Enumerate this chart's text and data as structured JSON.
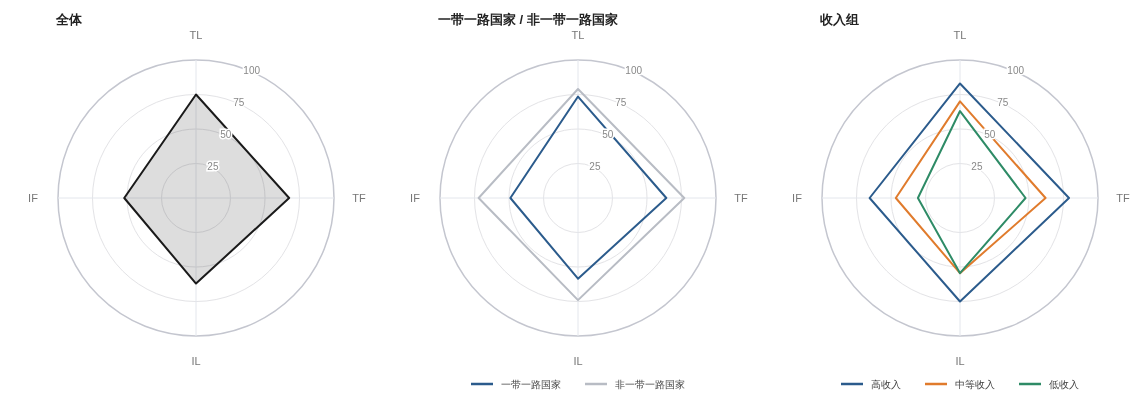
{
  "chart_data": [
    {
      "type": "radar",
      "title": "全体",
      "categories": [
        "TL",
        "TF",
        "IL",
        "IF"
      ],
      "ylim": [
        0,
        100
      ],
      "yticks": [
        25,
        50,
        75,
        100
      ],
      "grid": true,
      "legend": false,
      "series": [
        {
          "type": "area",
          "color": "#1a1a1a",
          "values": [
            75,
            67.5,
            62,
            52
          ]
        }
      ]
    },
    {
      "type": "radar",
      "title": "一带一路国家 / 非一带一路国家",
      "categories": [
        "TL",
        "TF",
        "IL",
        "IF"
      ],
      "ylim": [
        0,
        100
      ],
      "yticks": [
        25,
        50,
        75,
        100
      ],
      "grid": true,
      "legend": "bottom",
      "series": [
        {
          "name": "一带一路国家",
          "color": "#2b5b8c",
          "values": [
            73.5,
            64,
            58.5,
            49
          ]
        },
        {
          "name": "非一带一路国家",
          "color": "#b8bcc4",
          "values": [
            79,
            77,
            74,
            72
          ]
        }
      ]
    },
    {
      "type": "radar",
      "title": "收入组",
      "categories": [
        "TL",
        "TF",
        "IL",
        "IF"
      ],
      "ylim": [
        0,
        100
      ],
      "yticks": [
        25,
        50,
        75,
        100
      ],
      "grid": true,
      "legend": "bottom",
      "series": [
        {
          "name": "高收入",
          "color": "#2b5b8c",
          "values": [
            83,
            79,
            75,
            65.5
          ]
        },
        {
          "name": "中等收入",
          "color": "#e07b2c",
          "values": [
            70,
            62,
            54.5,
            46.5
          ]
        },
        {
          "name": "低收入",
          "color": "#2e8b66",
          "values": [
            63,
            47.5,
            54.5,
            30.5
          ]
        }
      ]
    }
  ]
}
